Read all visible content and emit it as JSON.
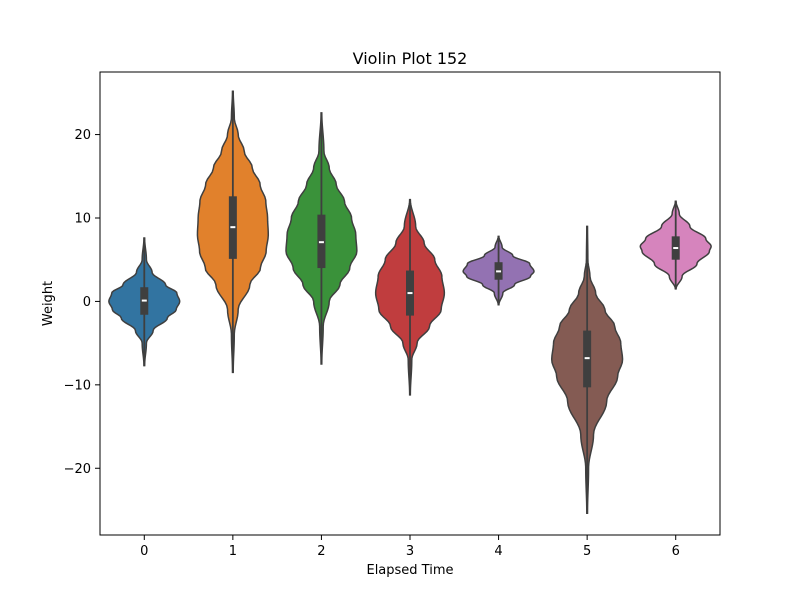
{
  "chart_data": {
    "type": "violin",
    "title": "Violin Plot 152",
    "xlabel": "Elapsed Time",
    "ylabel": "Weight",
    "ylim": [
      -28,
      27.5
    ],
    "yticks": [
      -20,
      -10,
      0,
      10,
      20
    ],
    "categories": [
      "0",
      "1",
      "2",
      "3",
      "4",
      "5",
      "6"
    ],
    "grid": false,
    "legend": "none",
    "colors": [
      "#3274a1",
      "#e1812c",
      "#3a923a",
      "#c03d3e",
      "#9372b2",
      "#845b53",
      "#d684bd"
    ],
    "series": [
      {
        "category": "0",
        "min": -7.7,
        "max": 7.6,
        "median": 0.1,
        "q1": -1.6,
        "q3": 1.7,
        "density": [
          [
            -7.7,
            0.01
          ],
          [
            -5,
            0.06
          ],
          [
            -3.5,
            0.25
          ],
          [
            -2,
            0.65
          ],
          [
            -1,
            0.9
          ],
          [
            0,
            1.0
          ],
          [
            1,
            0.92
          ],
          [
            2,
            0.6
          ],
          [
            3.5,
            0.22
          ],
          [
            5,
            0.06
          ],
          [
            7.6,
            0.01
          ]
        ]
      },
      {
        "category": "1",
        "min": -8.5,
        "max": 25.2,
        "median": 8.9,
        "q1": 5.1,
        "q3": 12.6,
        "density": [
          [
            -8.5,
            0.01
          ],
          [
            -4,
            0.04
          ],
          [
            -1,
            0.15
          ],
          [
            2,
            0.48
          ],
          [
            4,
            0.78
          ],
          [
            6,
            0.94
          ],
          [
            8,
            1.0
          ],
          [
            10,
            0.98
          ],
          [
            12,
            0.93
          ],
          [
            14,
            0.77
          ],
          [
            16,
            0.55
          ],
          [
            18,
            0.32
          ],
          [
            20,
            0.15
          ],
          [
            22,
            0.04
          ],
          [
            25.2,
            0.01
          ]
        ]
      },
      {
        "category": "2",
        "min": -7.5,
        "max": 22.6,
        "median": 7.1,
        "q1": 4.0,
        "q3": 10.4,
        "density": [
          [
            -7.5,
            0.01
          ],
          [
            -3,
            0.05
          ],
          [
            0,
            0.22
          ],
          [
            2,
            0.52
          ],
          [
            4,
            0.8
          ],
          [
            6,
            1.0
          ],
          [
            8,
            0.97
          ],
          [
            10,
            0.85
          ],
          [
            12,
            0.65
          ],
          [
            14,
            0.42
          ],
          [
            16,
            0.22
          ],
          [
            18,
            0.07
          ],
          [
            22.6,
            0.01
          ]
        ]
      },
      {
        "category": "3",
        "min": -11.2,
        "max": 12.2,
        "median": 1.0,
        "q1": -1.7,
        "q3": 3.7,
        "density": [
          [
            -11.2,
            0.01
          ],
          [
            -7,
            0.05
          ],
          [
            -5,
            0.2
          ],
          [
            -3,
            0.55
          ],
          [
            -1,
            0.88
          ],
          [
            1,
            0.97
          ],
          [
            3,
            0.9
          ],
          [
            5,
            0.7
          ],
          [
            7,
            0.4
          ],
          [
            9,
            0.16
          ],
          [
            12.2,
            0.01
          ]
        ]
      },
      {
        "category": "4",
        "min": -0.4,
        "max": 7.8,
        "median": 3.6,
        "q1": 2.6,
        "q3": 4.7,
        "density": [
          [
            -0.4,
            0.01
          ],
          [
            1,
            0.12
          ],
          [
            2,
            0.45
          ],
          [
            3,
            0.9
          ],
          [
            3.6,
            1.0
          ],
          [
            4.5,
            0.88
          ],
          [
            5.5,
            0.4
          ],
          [
            6.5,
            0.1
          ],
          [
            7.8,
            0.01
          ]
        ]
      },
      {
        "category": "5",
        "min": -25.4,
        "max": 9.0,
        "median": -6.8,
        "q1": -10.3,
        "q3": -3.5,
        "density": [
          [
            -25.4,
            0.01
          ],
          [
            -20,
            0.04
          ],
          [
            -16,
            0.18
          ],
          [
            -12,
            0.55
          ],
          [
            -9,
            0.86
          ],
          [
            -7,
            1.0
          ],
          [
            -5,
            0.95
          ],
          [
            -3,
            0.78
          ],
          [
            -1,
            0.5
          ],
          [
            1,
            0.24
          ],
          [
            3,
            0.08
          ],
          [
            5,
            0.02
          ],
          [
            9.0,
            0.01
          ]
        ]
      },
      {
        "category": "6",
        "min": 1.5,
        "max": 12.0,
        "median": 6.4,
        "q1": 5.0,
        "q3": 7.8,
        "density": [
          [
            1.5,
            0.01
          ],
          [
            3,
            0.18
          ],
          [
            4.5,
            0.6
          ],
          [
            6,
            0.95
          ],
          [
            6.6,
            1.0
          ],
          [
            7.5,
            0.85
          ],
          [
            9,
            0.4
          ],
          [
            10.5,
            0.1
          ],
          [
            12.0,
            0.01
          ]
        ]
      }
    ]
  }
}
